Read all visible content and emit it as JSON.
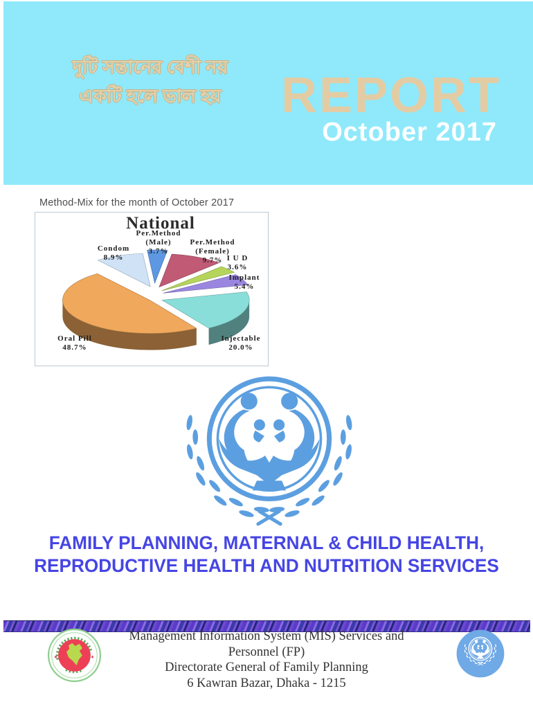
{
  "banner": {
    "slogan_line1": "দুটি সন্তানের বেশী নয়",
    "slogan_line2": "একটি হলে ভাল হয়",
    "title": "REPORT",
    "subtitle": "October 2017"
  },
  "chart_heading": "Method-Mix for the month of  October 2017",
  "chart_data": {
    "type": "pie",
    "style": "3d-exploded",
    "title": "National",
    "unit": "percent",
    "slices": [
      {
        "label": "Per.Method (Male)",
        "label_lines": [
          "Per.Method",
          "(Male)"
        ],
        "value": 3.7,
        "pct_label": "3.7%",
        "color": "#5E97E2"
      },
      {
        "label": "Per.Method (Female)",
        "label_lines": [
          "Per.Method",
          "(Female)"
        ],
        "value": 9.7,
        "pct_label": "9.7%",
        "color": "#C05A75"
      },
      {
        "label": "I U D",
        "label_lines": [
          "I U D"
        ],
        "value": 3.6,
        "pct_label": "3.6%",
        "color": "#B5D45A"
      },
      {
        "label": "Implant",
        "label_lines": [
          "Implant"
        ],
        "value": 5.4,
        "pct_label": "5.4%",
        "color": "#9A86E0"
      },
      {
        "label": "Injectable",
        "label_lines": [
          "Injectable"
        ],
        "value": 20.0,
        "pct_label": "20.0%",
        "color": "#8ADEDA"
      },
      {
        "label": "Oral Pill",
        "label_lines": [
          "Oral Pill"
        ],
        "value": 48.7,
        "pct_label": "48.7%",
        "color": "#F0A85C"
      },
      {
        "label": "Condom",
        "label_lines": [
          "Condom"
        ],
        "value": 8.9,
        "pct_label": "8.9%",
        "color": "#CFE2F6"
      }
    ]
  },
  "headline": {
    "line1": "FAMILY PLANNING, MATERNAL & CHILD HEALTH,",
    "line2": "REPRODUCTIVE HEALTH AND NUTRITION SERVICES"
  },
  "footer": {
    "org_line1": "Management Information System (MIS) Services and Personnel (FP)",
    "org_line2": "Directorate General of Family Planning",
    "org_line3": "6 Kawran Bazar, Dhaka - 1215",
    "left_icon": "bangladesh-government-seal",
    "right_icon": "family-planning-badge"
  },
  "icons": {
    "center_emblem": "family-planning-emblem-with-laurel-wreath"
  },
  "colors": {
    "banner_bg": "#8FE9FB",
    "banner_title": "#E3CCA4",
    "banner_subtitle": "#FFFFFF",
    "slogan": "#E2D2AC",
    "headline": "#4645E4",
    "emblem_blue": "#5C9FE0",
    "badge_blue": "#6FA9E6",
    "seal_ring_green": "#8FCF8F",
    "seal_red": "#ED4056",
    "seal_map_green": "#B8D94E",
    "chart_border": "#BCC8D2"
  }
}
